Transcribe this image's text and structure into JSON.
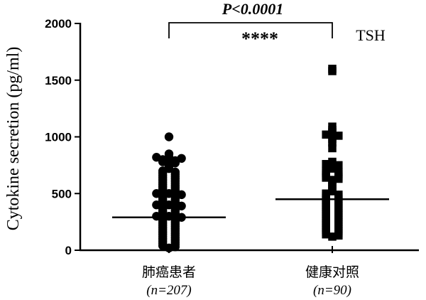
{
  "chart_data": {
    "type": "scatter",
    "ylabel": "Cytokine secretion (pg/ml)",
    "ylim": [
      0,
      2000
    ],
    "yticks": [
      0,
      500,
      1000,
      1500,
      2000
    ],
    "cytokine": "TSH",
    "significance": {
      "p_text": "P<0.0001",
      "stars": "****"
    },
    "groups": [
      {
        "name": "肺癌患者",
        "n_label": "(n=207)",
        "marker": "circle",
        "median": 290,
        "values": [
          1000,
          850,
          820,
          820,
          810,
          800,
          790,
          780,
          770,
          760,
          740,
          720,
          700,
          690,
          680,
          670,
          660,
          650,
          640,
          630,
          620,
          610,
          600,
          590,
          580,
          570,
          560,
          550,
          540,
          530,
          520,
          510,
          500,
          500,
          490,
          480,
          470,
          460,
          450,
          440,
          430,
          420,
          410,
          400,
          400,
          390,
          380,
          370,
          360,
          350,
          340,
          330,
          320,
          310,
          300,
          300,
          290,
          280,
          270,
          260,
          250,
          240,
          230,
          220,
          210,
          200,
          190,
          180,
          170,
          160,
          150,
          140,
          130,
          120,
          110,
          100,
          90,
          80,
          70,
          60,
          50,
          40,
          30,
          20
        ]
      },
      {
        "name": "健康对照",
        "n_label": "(n=90)",
        "marker": "square",
        "median": 450,
        "values": [
          1600,
          1580,
          1090,
          1060,
          1040,
          1020,
          1010,
          980,
          950,
          900,
          780,
          760,
          750,
          740,
          720,
          700,
          690,
          680,
          670,
          660,
          650,
          640,
          630,
          620,
          600,
          580,
          560,
          540,
          520,
          500,
          490,
          480,
          470,
          460,
          450,
          440,
          430,
          420,
          410,
          400,
          390,
          380,
          370,
          360,
          350,
          340,
          330,
          320,
          310,
          300,
          290,
          280,
          270,
          260,
          250,
          240,
          230,
          220,
          210,
          200,
          190,
          180,
          170,
          160,
          150,
          140,
          130,
          120
        ]
      }
    ]
  }
}
